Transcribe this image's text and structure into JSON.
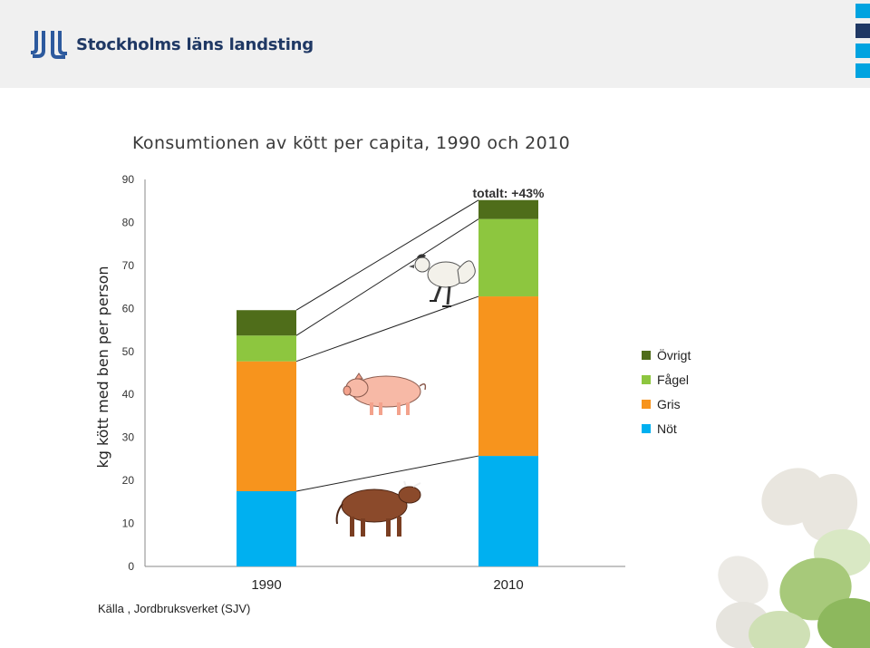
{
  "header": {
    "logo_text": "Stockholms läns landsting",
    "square_colors": [
      "#00a3e0",
      "#1f3864",
      "#00a3e0",
      "#00a3e0"
    ]
  },
  "footer": {
    "source": "Källa , Jordbruksverket (SJV)"
  },
  "chart_data": {
    "type": "bar",
    "stacked": true,
    "title": "Konsumtionen av kött per capita, 1990 och 2010",
    "ylabel": "kg kött med ben per person",
    "xlabel": "",
    "categories": [
      "1990",
      "2010"
    ],
    "ylim": [
      0,
      90
    ],
    "yticks": [
      0,
      10,
      20,
      30,
      40,
      50,
      60,
      70,
      80,
      90
    ],
    "series": [
      {
        "name": "Nöt",
        "color": "#00b0f0",
        "values": [
          17.5,
          25.7
        ]
      },
      {
        "name": "Gris",
        "color": "#f7941d",
        "values": [
          30.2,
          37.1
        ]
      },
      {
        "name": "Fågel",
        "color": "#8dc63f",
        "values": [
          6.0,
          18.0
        ]
      },
      {
        "name": "Övrigt",
        "color": "#4f6d1a",
        "values": [
          5.9,
          4.4
        ]
      }
    ],
    "annotation": "totalt: +43%",
    "legend": [
      "Övrigt",
      "Fågel",
      "Gris",
      "Nöt"
    ],
    "legend_position": "right",
    "animal_icons": [
      "chicken-icon",
      "pig-icon",
      "cow-icon"
    ]
  }
}
